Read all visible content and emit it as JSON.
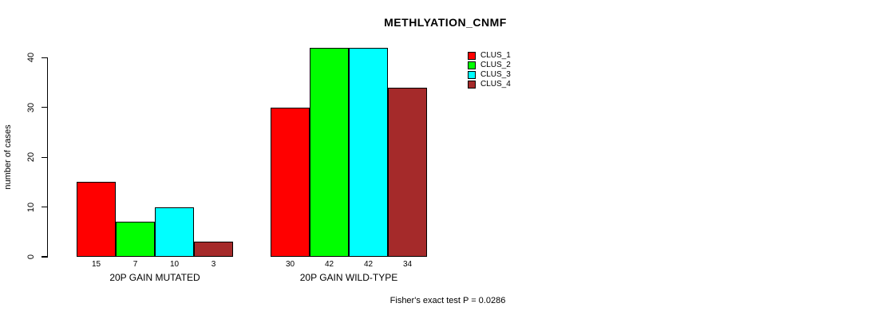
{
  "chart_data": {
    "type": "bar",
    "title": "METHLYATION_CNMF",
    "ylabel": "number of cases",
    "xlabel": "",
    "categories": [
      "20P GAIN MUTATED",
      "20P GAIN WILD-TYPE"
    ],
    "series": [
      {
        "name": "CLUS_1",
        "color": "#ff0000",
        "values": [
          15,
          30
        ]
      },
      {
        "name": "CLUS_2",
        "color": "#00ff00",
        "values": [
          7,
          42
        ]
      },
      {
        "name": "CLUS_3",
        "color": "#00ffff",
        "values": [
          10,
          42
        ]
      },
      {
        "name": "CLUS_4",
        "color": "#a52a2a",
        "values": [
          3,
          34
        ]
      }
    ],
    "yticks": [
      0,
      10,
      20,
      30,
      40
    ],
    "ylim": [
      0,
      42
    ],
    "grid": false,
    "legend_position": "right",
    "bar_value_labels_shown": true,
    "footer": "Fisher's exact test P = 0.0286"
  }
}
